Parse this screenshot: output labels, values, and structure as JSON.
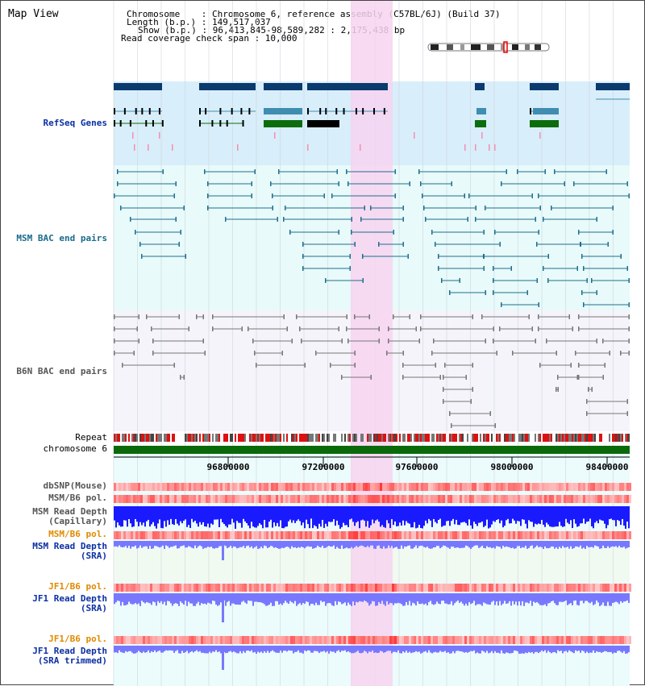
{
  "title": "Map View",
  "info": {
    "chromosome_line": "Chromosome    : Chromosome 6, reference assembly (C57BL/6J) (Build 37)",
    "length_line": "Length (b.p.) : 149,517,037",
    "show_line": "Show (b.p.) : 96,413,845-98,589,282 : 2,175,438 bp",
    "read_line": "Read coverage check span : 10,000"
  },
  "tracks": {
    "refseq_genes": "RefSeq Genes",
    "msm_bac": "MSM BAC end pairs",
    "b6n_bac": "B6N BAC end pairs",
    "repeat": "Repeat",
    "chromosome": "chromosome 6",
    "dbsnp": "dbSNP(Mouse)",
    "msm_b6_pol": "MSM/B6 pol.",
    "msm_read_depth_cap_1": "MSM Read Depth",
    "msm_read_depth_cap_2": "(Capillary)",
    "msm_b6_pol_sra": "MSM/B6 pol.",
    "msm_read_depth_sra_1": "MSM Read Depth",
    "msm_read_depth_sra_2": "(SRA)",
    "jf1_b6_pol": "JF1/B6 pol.",
    "jf1_read_depth_1": "JF1 Read Depth",
    "jf1_read_depth_2": "(SRA)",
    "jf1_b6_pol_trim": "JF1/B6 pol.",
    "jf1_read_depth_trim_1": "JF1 Read Depth",
    "jf1_read_depth_trim_2": "(SRA trimmed)"
  },
  "ruler": {
    "ticks": [
      "96800000",
      "97200000",
      "97600000",
      "98000000",
      "98400000"
    ]
  },
  "colors": {
    "refseq_bg": "#d8eefa",
    "bac_bg": "#e8fafa",
    "b6n_bg": "#f4f4fa",
    "highlight": "#f7d3f0",
    "gene_dark": "#0b3a6e",
    "gene_mid": "#3f8db0",
    "gene_green": "#0d6d0d",
    "msm_line": "#1f6f8f",
    "b6n_line": "#777777",
    "label_blue": "#0b2fa3",
    "label_teal": "#1a6b8a",
    "label_gray": "#555555",
    "label_orange": "#e08a00",
    "depth_blue": "#1a1aff",
    "depth_light": "#7878ff",
    "chrom_green": "#0a6a0a"
  },
  "icons": {
    "chromosome_ideogram": "chromosome-ideogram-icon"
  }
}
